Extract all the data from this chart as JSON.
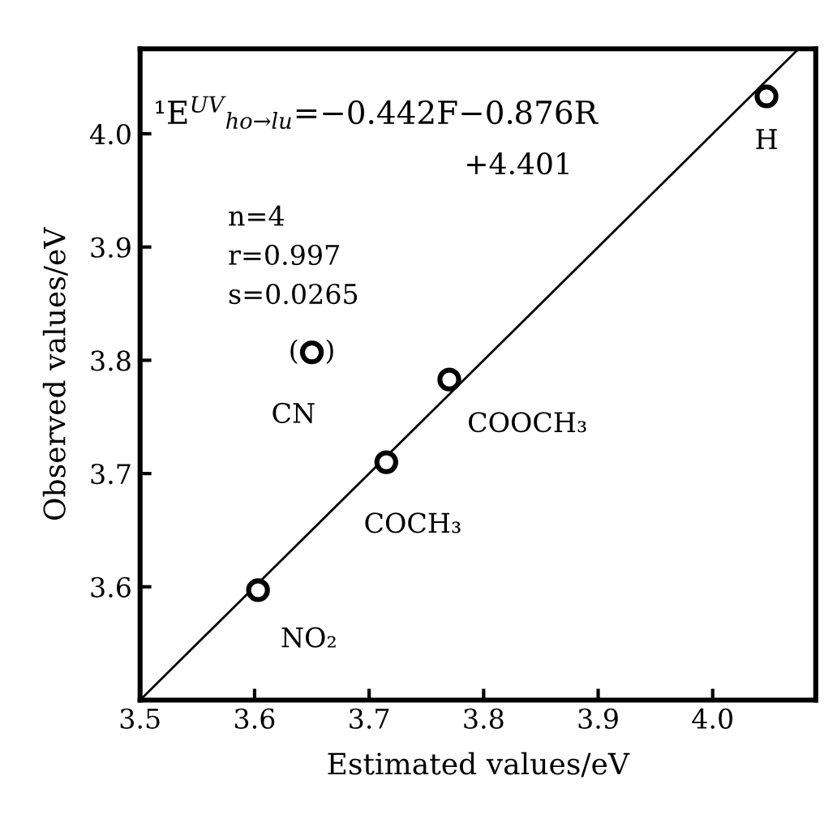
{
  "chart_data": {
    "type": "scatter",
    "xlabel": "Estimated values/eV",
    "ylabel": "Observed values/eV",
    "xlim": [
      3.5,
      4.09
    ],
    "ylim": [
      3.5,
      4.075
    ],
    "xticks": [
      3.5,
      3.6,
      3.7,
      3.8,
      3.9,
      {
        "value": 4.0,
        "label": "4.0"
      }
    ],
    "yticks": [
      {
        "value": 3.5,
        "label": null
      },
      3.6,
      3.7,
      3.8,
      3.9,
      {
        "value": 4.0,
        "label": "4.0"
      }
    ],
    "grid": false,
    "legend": false,
    "series": [
      {
        "marker": "circle",
        "color": "#000000",
        "x": [
          3.603,
          3.715,
          3.77,
          3.65,
          4.047
        ],
        "values": [
          3.597,
          3.71,
          3.783,
          3.807,
          4.033
        ]
      },
      {
        "type": "line",
        "color": "#000000",
        "x": [
          3.5,
          4.075
        ],
        "values": [
          3.5,
          4.075
        ],
        "line_style": "solid"
      }
    ],
    "annotations": [
      "¹E$^{UV}$$_{ho→lu}$=−0.442F−0.876R",
      "+4.401",
      "n=4",
      "r=0.997",
      "s=0.0265",
      {
        "text": "NO₂",
        "x": 3.603,
        "y": 3.597
      },
      {
        "text": "COCH₃",
        "x": 3.715,
        "y": 3.71
      },
      {
        "text": "COOCH₃",
        "x": 3.77,
        "y": 3.783
      },
      {
        "text": "CN",
        "x": 3.65,
        "y": 3.807
      },
      {
        "text": "(   )",
        "x": 3.65,
        "y": 3.807
      },
      {
        "text": "H",
        "x": 4.047,
        "y": 4.033
      }
    ]
  }
}
